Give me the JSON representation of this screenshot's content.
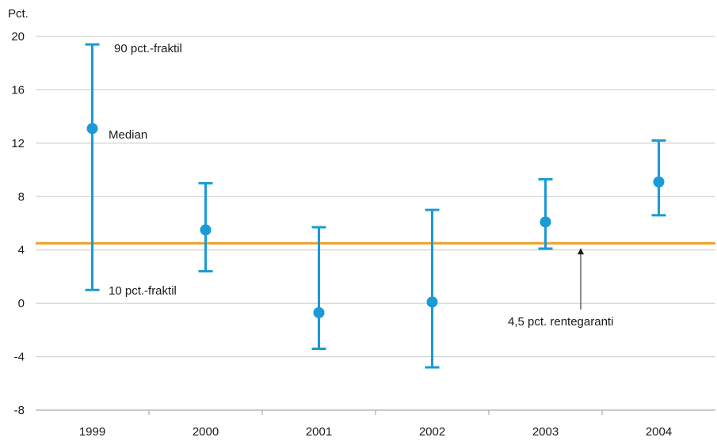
{
  "chart_data": {
    "type": "errorbar",
    "ylabel": "Pct.",
    "ylim": [
      -8,
      20
    ],
    "yticks": [
      20,
      16,
      12,
      8,
      4,
      0,
      -4,
      -8
    ],
    "ytick_labels": [
      "20",
      "16",
      "12",
      "8",
      "4",
      "0",
      "-4",
      "-8"
    ],
    "grid": true,
    "categories": [
      "1999",
      "2000",
      "2001",
      "2002",
      "2003",
      "2004"
    ],
    "series": [
      {
        "median": [
          13.1,
          5.5,
          -0.7,
          0.1,
          6.1,
          9.1
        ],
        "p10": [
          1.0,
          2.4,
          -3.4,
          -4.8,
          4.1,
          6.6
        ],
        "p90": [
          19.4,
          9.0,
          5.7,
          7.0,
          9.3,
          12.2
        ]
      }
    ],
    "reference_line": {
      "value": 4.5,
      "label": "4,5 pct. rentegaranti"
    },
    "annotations": {
      "p90_label": "90 pct.-fraktil",
      "median_label": "Median",
      "p10_label": "10 pct.-fraktil"
    },
    "colors": {
      "series": "#1a9ad6",
      "reference": "#f0a020",
      "grid": "#c8c8c8",
      "axis": "#9a9a9a",
      "text": "#1a1a1a"
    }
  }
}
